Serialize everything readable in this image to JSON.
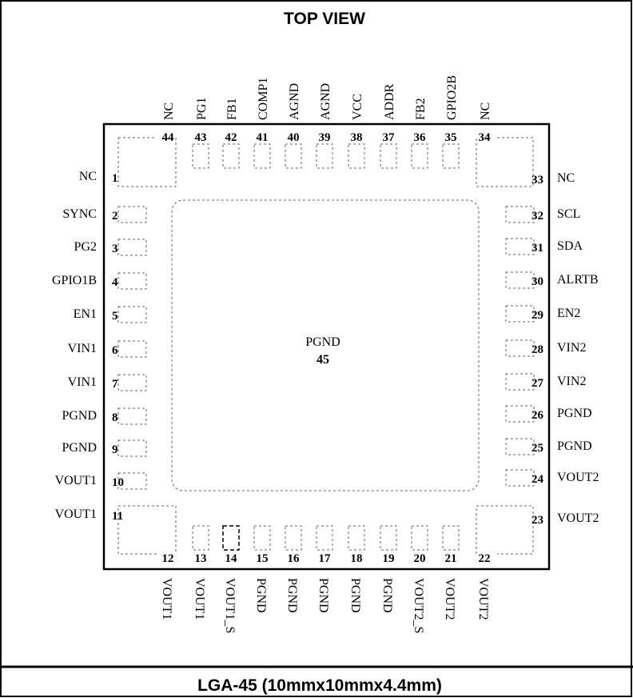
{
  "title": "TOP VIEW",
  "package": "LGA-45 (10mmx10mmx4.4mm)",
  "center_pad": {
    "name": "PGND",
    "number": "45"
  },
  "pins": {
    "left": [
      {
        "num": "1",
        "name": "NC"
      },
      {
        "num": "2",
        "name": "SYNC"
      },
      {
        "num": "3",
        "name": "PG2"
      },
      {
        "num": "4",
        "name": "GPIO1B"
      },
      {
        "num": "5",
        "name": "EN1"
      },
      {
        "num": "6",
        "name": "VIN1"
      },
      {
        "num": "7",
        "name": "VIN1"
      },
      {
        "num": "8",
        "name": "PGND"
      },
      {
        "num": "9",
        "name": "PGND"
      },
      {
        "num": "10",
        "name": "VOUT1"
      },
      {
        "num": "11",
        "name": "VOUT1"
      }
    ],
    "bottom": [
      {
        "num": "12",
        "name": "VOUT1"
      },
      {
        "num": "13",
        "name": "VOUT1"
      },
      {
        "num": "14",
        "name": "VOUT1_S"
      },
      {
        "num": "15",
        "name": "PGND"
      },
      {
        "num": "16",
        "name": "PGND"
      },
      {
        "num": "17",
        "name": "PGND"
      },
      {
        "num": "18",
        "name": "PGND"
      },
      {
        "num": "19",
        "name": "PGND"
      },
      {
        "num": "20",
        "name": "VOUT2_S"
      },
      {
        "num": "21",
        "name": "VOUT2"
      },
      {
        "num": "22",
        "name": "VOUT2"
      }
    ],
    "right": [
      {
        "num": "23",
        "name": "VOUT2"
      },
      {
        "num": "24",
        "name": "VOUT2"
      },
      {
        "num": "25",
        "name": "PGND"
      },
      {
        "num": "26",
        "name": "PGND"
      },
      {
        "num": "27",
        "name": "VIN2"
      },
      {
        "num": "28",
        "name": "VIN2"
      },
      {
        "num": "29",
        "name": "EN2"
      },
      {
        "num": "30",
        "name": "ALRTB"
      },
      {
        "num": "31",
        "name": "SDA"
      },
      {
        "num": "32",
        "name": "SCL"
      },
      {
        "num": "33",
        "name": "NC"
      }
    ],
    "top": [
      {
        "num": "34",
        "name": "NC"
      },
      {
        "num": "35",
        "name": "GPIO2B"
      },
      {
        "num": "36",
        "name": "FB2"
      },
      {
        "num": "37",
        "name": "ADDR"
      },
      {
        "num": "38",
        "name": "VCC"
      },
      {
        "num": "39",
        "name": "AGND"
      },
      {
        "num": "40",
        "name": "AGND"
      },
      {
        "num": "41",
        "name": "COMP1"
      },
      {
        "num": "42",
        "name": "FB1"
      },
      {
        "num": "43",
        "name": "PG1"
      },
      {
        "num": "44",
        "name": "NC"
      }
    ]
  }
}
